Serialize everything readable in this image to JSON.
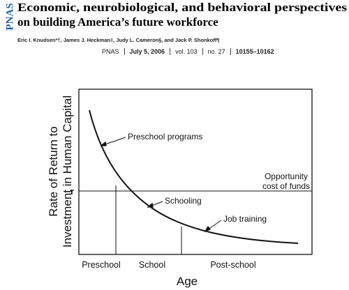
{
  "header": {
    "logo": "PNAS",
    "title": [
      "Economic, neurobiological, and behavioral perspectives",
      "on building America’s future workforce"
    ],
    "authors": "Eric I. Knudsen*†, James J. Heckman‡, Judy L. Cameron§, and Jack P. Shonkoff¶",
    "journal": [
      {
        "text": "PNAS",
        "bold": false
      },
      {
        "text": "July 5, 2006",
        "bold": true
      },
      {
        "text": "vol. 103",
        "bold": false
      },
      {
        "text": "no. 27",
        "bold": false
      },
      {
        "text": "10155–10162",
        "bold": true
      }
    ]
  },
  "figure": {
    "y_axis_label": [
      "Rate of Return to",
      "Investment in Human Capital"
    ],
    "r_label": "r",
    "cost_label": [
      "Opportunity",
      "cost of funds"
    ],
    "curve_labels": [
      "Preschool programs",
      "Schooling",
      "Job training"
    ],
    "periods": [
      "Preschool",
      "School",
      "Post-school"
    ],
    "x_axis_label": "Age"
  }
}
